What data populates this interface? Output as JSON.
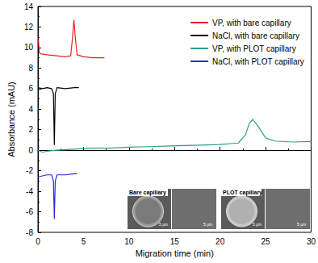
{
  "chart_data": {
    "type": "line",
    "x_label": "Migration time (min)",
    "y_label": "Absorbance (mAU)",
    "xlim": [
      0,
      30
    ],
    "xticks": [
      0,
      5,
      10,
      15,
      20,
      25,
      30
    ],
    "ylim": [
      -8,
      14
    ],
    "yticks": [
      -8,
      -6,
      -4,
      -2,
      0,
      2,
      4,
      6,
      8,
      10,
      12,
      14
    ],
    "grid": false,
    "legend": "upper right",
    "series": [
      {
        "name": "VP, with bare capillary",
        "color": "#e8202a",
        "x": [
          0.05,
          0.15,
          0.3,
          1,
          2,
          3,
          3.6,
          3.8,
          3.95,
          4.1,
          4.3,
          5,
          6,
          7.3
        ],
        "values": [
          10.8,
          9.5,
          9.4,
          9.3,
          9.2,
          9.1,
          9.2,
          11,
          12.7,
          11,
          9.3,
          9.1,
          9.0,
          9.0
        ]
      },
      {
        "name": "NaCl, with bare capillary",
        "color": "#000000",
        "x": [
          0,
          0.5,
          1,
          1.5,
          1.7,
          1.8,
          1.9,
          2.1,
          3,
          4,
          4.5
        ],
        "values": [
          6.1,
          6.0,
          6.1,
          6.0,
          5.5,
          0.5,
          5.5,
          6.1,
          6.0,
          6.1,
          6.1
        ]
      },
      {
        "name": "VP, with PLOT capillary",
        "color": "#2e9e8f",
        "x": [
          0,
          0.5,
          1,
          2,
          4,
          6,
          8,
          10,
          12,
          14,
          16,
          18,
          20,
          22,
          22.8,
          23.2,
          23.6,
          24.2,
          25,
          26,
          28,
          30
        ],
        "values": [
          0.0,
          -0.2,
          -0.1,
          0.0,
          0.1,
          0.2,
          0.2,
          0.3,
          0.35,
          0.4,
          0.45,
          0.5,
          0.55,
          0.7,
          1.5,
          2.6,
          3.0,
          2.3,
          1.2,
          0.9,
          0.8,
          0.85
        ]
      },
      {
        "name": "NaCl, with PLOT capillary",
        "color": "#2a2ad8",
        "x": [
          0,
          0.5,
          1,
          1.5,
          1.7,
          1.8,
          1.9,
          2.1,
          3,
          4,
          4.3
        ],
        "values": [
          -2.6,
          -2.5,
          -2.4,
          -2.4,
          -3.0,
          -6.7,
          -3.0,
          -2.4,
          -2.4,
          -2.3,
          -2.3
        ]
      }
    ],
    "insets": [
      {
        "label": "Bare capillary",
        "scale_labels": [
          "5 μm",
          "5 μm"
        ]
      },
      {
        "label": "PLOT capillary",
        "scale_labels": [
          "5 μm",
          "5 μm"
        ]
      }
    ]
  }
}
